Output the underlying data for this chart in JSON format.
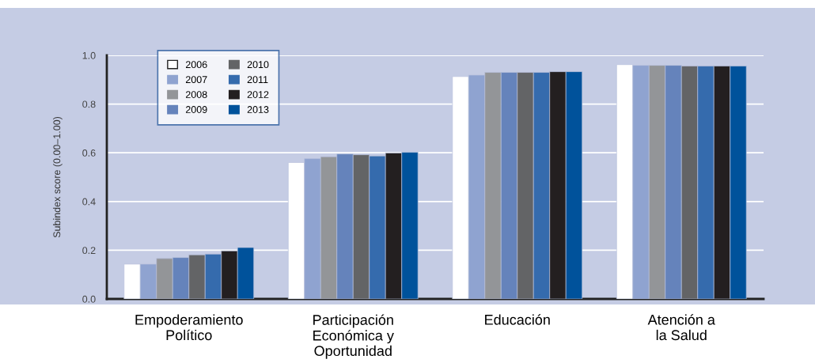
{
  "chart_data": {
    "type": "bar",
    "ylabel": "Subindex score (0.00–1.00)",
    "categories": [
      "Empoderamiento\nPolítico",
      "Participación\nEconómica y\nOportunidad",
      "Educación",
      "Atención a\nla Salud"
    ],
    "series": [
      {
        "name": "2006",
        "color": "#ffffff",
        "values": [
          0.143,
          0.56,
          0.913,
          0.962
        ]
      },
      {
        "name": "2007",
        "color": "#8fa3d0",
        "values": [
          0.143,
          0.576,
          0.919,
          0.959
        ]
      },
      {
        "name": "2008",
        "color": "#939598",
        "values": [
          0.166,
          0.584,
          0.93,
          0.959
        ]
      },
      {
        "name": "2009",
        "color": "#6583bb",
        "values": [
          0.17,
          0.595,
          0.93,
          0.959
        ]
      },
      {
        "name": "2010",
        "color": "#636466",
        "values": [
          0.181,
          0.592,
          0.93,
          0.956
        ]
      },
      {
        "name": "2011",
        "color": "#356bad",
        "values": [
          0.184,
          0.587,
          0.93,
          0.956
        ]
      },
      {
        "name": "2012",
        "color": "#231f20",
        "values": [
          0.197,
          0.599,
          0.933,
          0.956
        ]
      },
      {
        "name": "2013",
        "color": "#00529b",
        "values": [
          0.211,
          0.602,
          0.933,
          0.956
        ]
      }
    ],
    "ylim": [
      0,
      1.0
    ],
    "yticks": [
      {
        "value": 0,
        "label": "0.0"
      },
      {
        "value": 0.2,
        "label": "0.2"
      },
      {
        "value": 0.4,
        "label": "0.4"
      },
      {
        "value": 0.6,
        "label": "0.6"
      },
      {
        "value": 0.8,
        "label": "0.8"
      },
      {
        "value": 1,
        "label": "1.0"
      }
    ],
    "grid": "y",
    "legend": "top left"
  }
}
